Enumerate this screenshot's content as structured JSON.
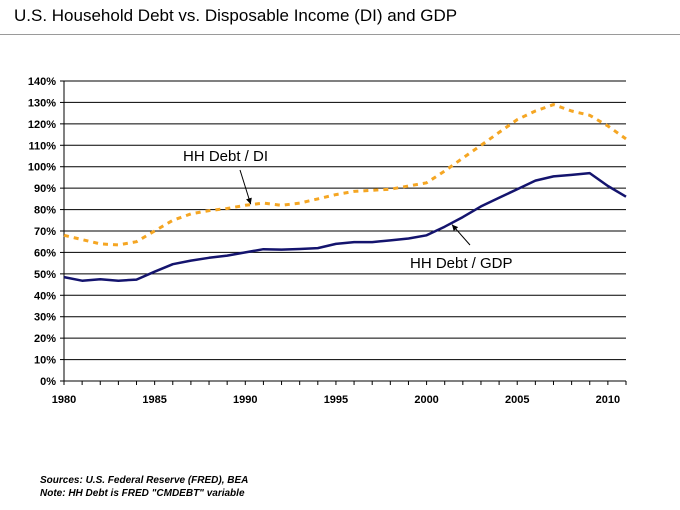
{
  "title": "U.S. Household Debt vs. Disposable Income (DI) and GDP",
  "notes": {
    "sources": "Sources:  U.S. Federal Reserve (FRED), BEA",
    "note": "Note: HH Debt is FRED \"CMDEBT\" variable"
  },
  "chart_data": {
    "type": "line",
    "title": "U.S. Household Debt vs. Disposable Income (DI) and GDP",
    "xlabel": "",
    "ylabel": "",
    "xlim": [
      1980,
      2011
    ],
    "ylim": [
      0,
      140
    ],
    "x_ticks": [
      "1980",
      "1985",
      "1990",
      "1995",
      "2000",
      "2005",
      "2010"
    ],
    "y_ticks": [
      "0%",
      "10%",
      "20%",
      "30%",
      "40%",
      "50%",
      "60%",
      "70%",
      "80%",
      "90%",
      "100%",
      "110%",
      "120%",
      "130%",
      "140%"
    ],
    "grid": true,
    "legend": "none (inline annotations)",
    "x": [
      1980,
      1981,
      1982,
      1983,
      1984,
      1985,
      1986,
      1987,
      1988,
      1989,
      1990,
      1991,
      1992,
      1993,
      1994,
      1995,
      1996,
      1997,
      1998,
      1999,
      2000,
      2001,
      2002,
      2003,
      2004,
      2005,
      2006,
      2007,
      2008,
      2009,
      2010,
      2011
    ],
    "series": [
      {
        "name": "HH Debt / DI",
        "color": "#f5a623",
        "style": "dashed",
        "values": [
          68,
          66,
          64,
          63.5,
          65,
          70,
          75,
          78,
          79.5,
          80.5,
          82,
          83,
          82,
          83,
          85,
          87,
          88.5,
          89,
          89.5,
          91,
          92.5,
          98,
          104,
          110,
          116,
          122,
          126,
          129,
          126,
          124,
          119,
          113
        ]
      },
      {
        "name": "HH Debt / GDP",
        "color": "#14146e",
        "style": "solid",
        "values": [
          48.5,
          46.8,
          47.5,
          46.8,
          47.3,
          51,
          54.5,
          56.2,
          57.5,
          58.5,
          60,
          61.5,
          61.3,
          61.6,
          62,
          64,
          64.8,
          64.8,
          65.6,
          66.5,
          68,
          72,
          76.5,
          81.5,
          85.5,
          89.5,
          93.5,
          95.5,
          96.2,
          97,
          91,
          86
        ]
      }
    ],
    "annotations": [
      {
        "text": "HH Debt / DI",
        "series": "HH Debt / DI",
        "arrow_to": [
          1990.3,
          82.5
        ]
      },
      {
        "text": "HH Debt / GDP",
        "series": "HH Debt / GDP",
        "arrow_to": [
          2001.4,
          73
        ]
      }
    ]
  }
}
